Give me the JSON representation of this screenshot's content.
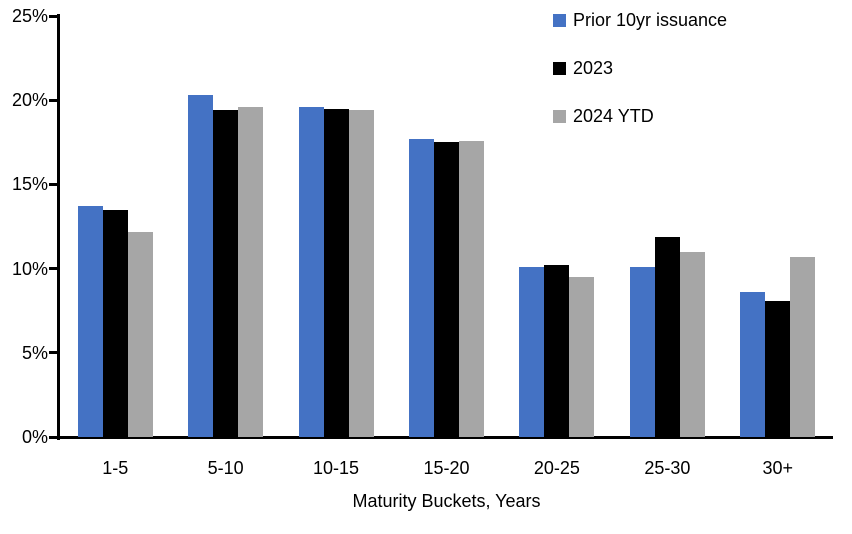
{
  "chart_data": {
    "type": "bar",
    "title": "",
    "xlabel": "Maturity Buckets, Years",
    "ylabel": "",
    "ylim": [
      0,
      25
    ],
    "y_ticks": [
      0,
      5,
      10,
      15,
      20,
      25
    ],
    "y_tick_suffix": "%",
    "grid": false,
    "legend_position": "top-right",
    "categories": [
      "1-5",
      "5-10",
      "10-15",
      "15-20",
      "20-25",
      "25-30",
      "30+"
    ],
    "series": [
      {
        "name": "Prior 10yr issuance",
        "color": "#4472C4",
        "values": [
          13.7,
          20.3,
          19.6,
          17.7,
          10.1,
          10.1,
          8.6
        ]
      },
      {
        "name": "2023",
        "color": "#000000",
        "values": [
          13.5,
          19.4,
          19.5,
          17.5,
          10.2,
          11.9,
          8.1
        ]
      },
      {
        "name": "2024 YTD",
        "color": "#A6A6A6",
        "values": [
          12.2,
          19.6,
          19.4,
          17.6,
          9.5,
          11.0,
          10.7
        ]
      }
    ]
  },
  "colors": {
    "background": "#FFFFFF",
    "axis": "#000000",
    "text": "#000000"
  }
}
